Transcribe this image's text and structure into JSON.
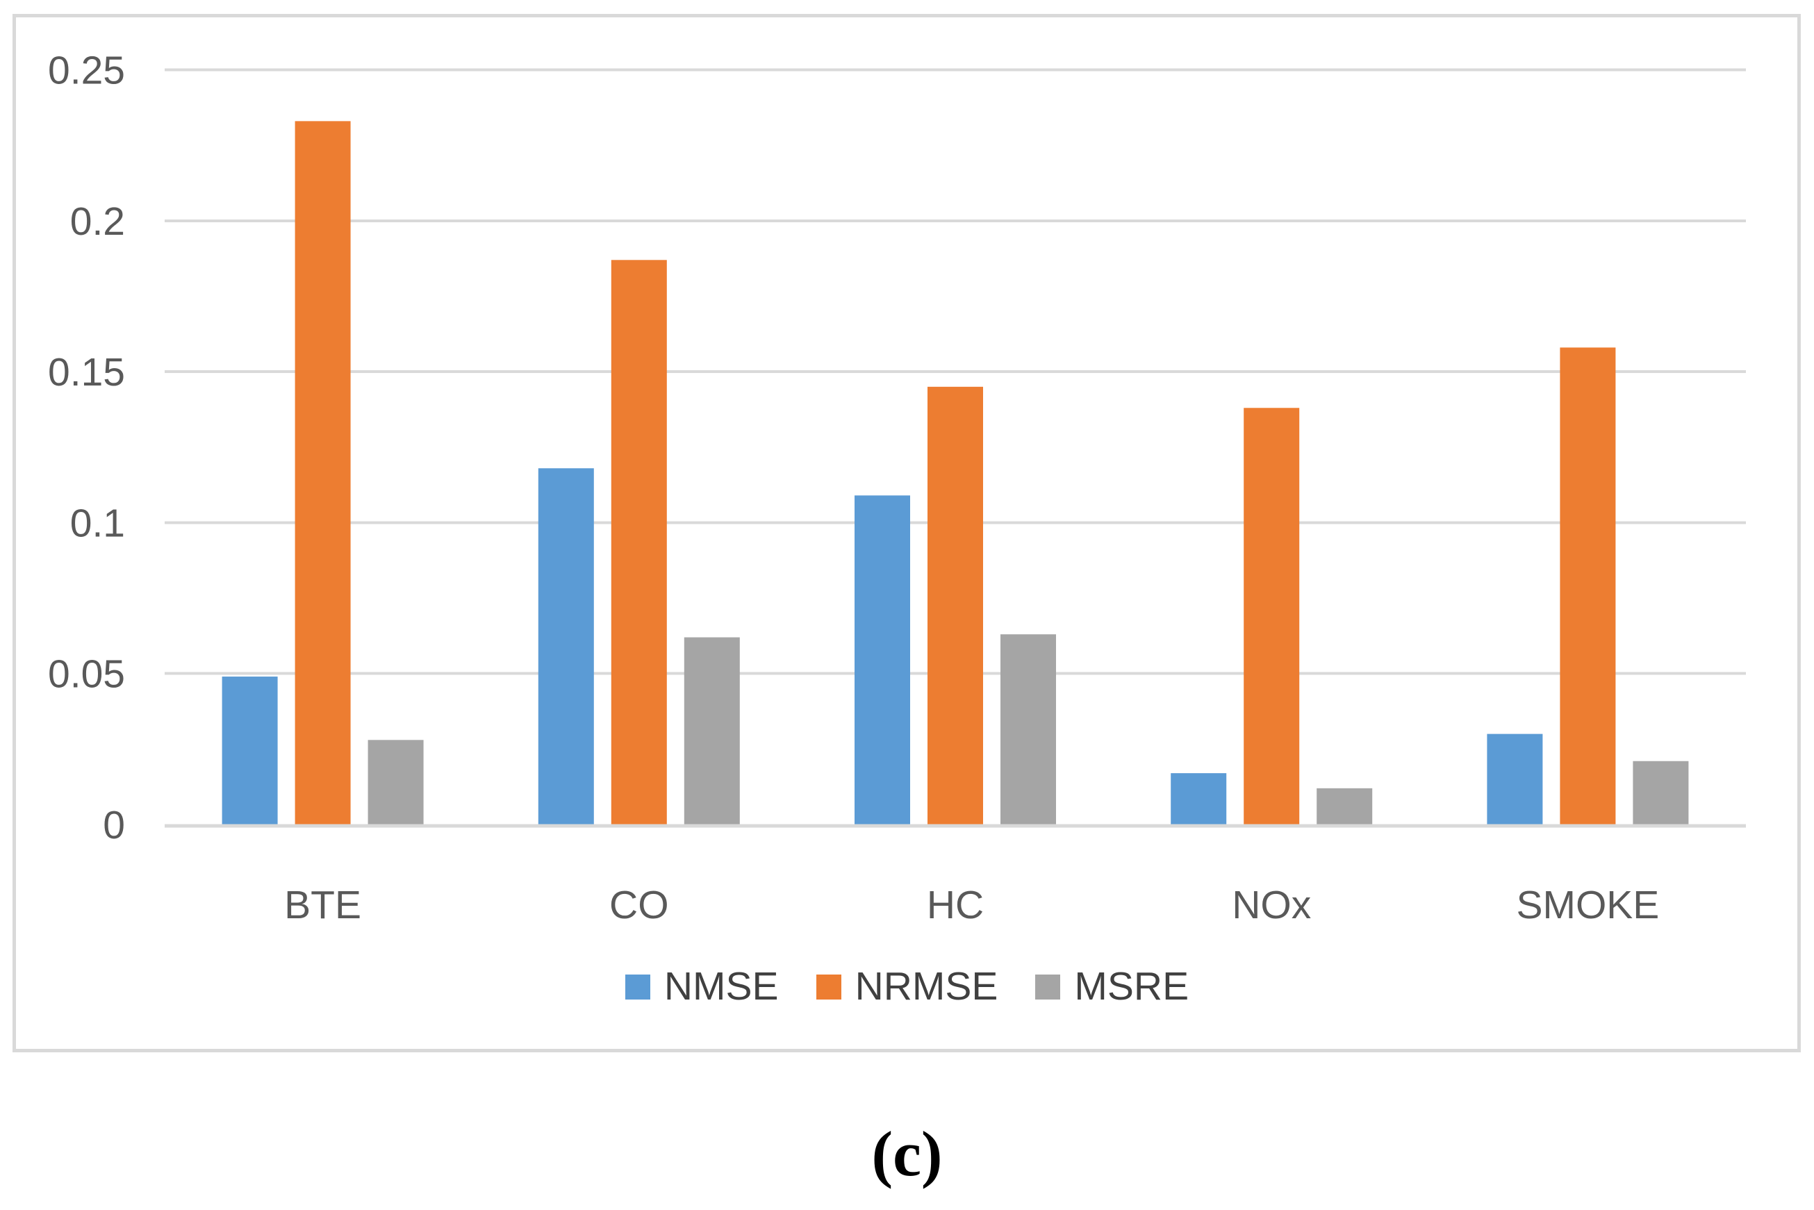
{
  "caption": {
    "text": "(c)"
  },
  "chart_data": {
    "type": "bar",
    "title": "",
    "categories": [
      "BTE",
      "CO",
      "HC",
      "NOx",
      "SMOKE"
    ],
    "series": [
      {
        "name": "NMSE",
        "color": "#5B9BD5",
        "values": [
          0.049,
          0.118,
          0.109,
          0.017,
          0.03
        ]
      },
      {
        "name": "NRMSE",
        "color": "#ED7D31",
        "values": [
          0.233,
          0.187,
          0.145,
          0.138,
          0.158
        ]
      },
      {
        "name": "MSRE",
        "color": "#A5A5A5",
        "values": [
          0.028,
          0.062,
          0.063,
          0.012,
          0.021
        ]
      }
    ],
    "xlabel": "",
    "ylabel": "",
    "ylim": [
      0,
      0.25
    ],
    "yticks": [
      0,
      0.05,
      0.1,
      0.15,
      0.2,
      0.25
    ],
    "ytick_labels": [
      "0",
      "0.05",
      "0.1",
      "0.15",
      "0.2",
      "0.25"
    ],
    "grid": "horizontal-gridlines",
    "legend_position": "bottom",
    "colors": {
      "gridline": "#D9D9D9",
      "axis_line": "#D9D9D9",
      "tick_label": "#595959",
      "category_label": "#595959",
      "legend_text": "#404040",
      "frame_border": "#D9D9D9",
      "background": "#FFFFFF"
    }
  }
}
